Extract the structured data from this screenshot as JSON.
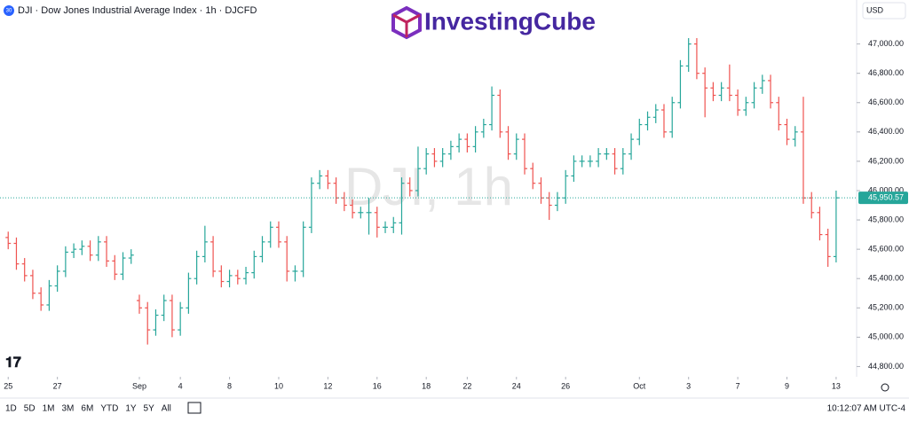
{
  "chart_data": {
    "type": "ohlc",
    "title": "DJI · Dow Jones Industrial Average Index · 1h · DJCFD",
    "symbol_badge": "30",
    "brand": "InvestingCube",
    "currency": "USD",
    "watermark": "DJI, 1h",
    "series": [
      {
        "name": "DJI",
        "up_color": "#26a69a",
        "down_color": "#ef5350",
        "open": [
          45680,
          45640,
          45500,
          45420,
          45300,
          45220,
          45350,
          45450,
          45580,
          45600,
          45620,
          45560,
          45650,
          45520,
          45430,
          45540,
          45250,
          45200,
          45050,
          45150,
          45250,
          45050,
          45200,
          45400,
          45550,
          45650,
          45450,
          45380,
          45420,
          45400,
          45440,
          45550,
          45650,
          45750,
          45650,
          45450,
          45450,
          45750,
          46050,
          46100,
          46050,
          45950,
          45900,
          45850,
          45850,
          45850,
          45750,
          45750,
          45780,
          46050,
          46000,
          46150,
          46250,
          46200,
          46250,
          46300,
          46350,
          46300,
          46400,
          46450,
          46650,
          46400,
          46250,
          46350,
          46150,
          46050,
          45950,
          45900,
          45950,
          46100,
          46200,
          46200,
          46200,
          46250,
          46250,
          46150,
          46250,
          46350,
          46450,
          46500,
          46550,
          46400,
          46600,
          46850,
          47000,
          46800,
          46700,
          46650,
          46700,
          46650,
          46550,
          46600,
          46700,
          46750,
          46600,
          46450,
          46350,
          46400,
          45950,
          45850,
          45700,
          45550
        ],
        "high": [
          45720,
          45680,
          45540,
          45460,
          45340,
          45390,
          45490,
          45620,
          45640,
          45660,
          45660,
          45690,
          45690,
          45560,
          45580,
          45600,
          45290,
          45240,
          45190,
          45290,
          45290,
          45240,
          45440,
          45590,
          45760,
          45690,
          45490,
          45460,
          45460,
          45480,
          45590,
          45690,
          45790,
          45790,
          45690,
          45490,
          45790,
          46090,
          46140,
          46140,
          46090,
          45990,
          45940,
          45890,
          45950,
          45890,
          45790,
          45820,
          46090,
          46090,
          46300,
          46290,
          46290,
          46290,
          46340,
          46390,
          46390,
          46440,
          46490,
          46710,
          46690,
          46440,
          46390,
          46390,
          46190,
          46090,
          45990,
          45990,
          46140,
          46240,
          46240,
          46240,
          46290,
          46290,
          46290,
          46290,
          46390,
          46490,
          46540,
          46590,
          46590,
          46640,
          46890,
          47040,
          47040,
          46840,
          46740,
          46740,
          46860,
          46690,
          46640,
          46740,
          46790,
          46790,
          46640,
          46490,
          46440,
          46640,
          45990,
          45890,
          45740,
          46000
        ],
        "low": [
          45600,
          45460,
          45380,
          45260,
          45180,
          45180,
          45310,
          45410,
          45540,
          45560,
          45520,
          45520,
          45480,
          45390,
          45390,
          45500,
          45160,
          44950,
          45010,
          45110,
          45000,
          45010,
          45160,
          45360,
          45510,
          45410,
          45340,
          45340,
          45360,
          45360,
          45400,
          45510,
          45610,
          45610,
          45380,
          45380,
          45410,
          45710,
          46010,
          46010,
          45910,
          45860,
          45810,
          45810,
          45700,
          45680,
          45710,
          45710,
          45700,
          45960,
          45960,
          46110,
          46160,
          46160,
          46210,
          46260,
          46260,
          46260,
          46360,
          46410,
          46360,
          46210,
          46210,
          46110,
          46010,
          45910,
          45800,
          45860,
          45910,
          46060,
          46160,
          46160,
          46160,
          46210,
          46110,
          46110,
          46210,
          46310,
          46410,
          46460,
          46360,
          46360,
          46560,
          46810,
          46760,
          46500,
          46610,
          46610,
          46610,
          46510,
          46510,
          46560,
          46660,
          46560,
          46410,
          46310,
          46300,
          45910,
          45810,
          45660,
          45480,
          45510
        ],
        "close": [
          45640,
          45500,
          45420,
          45300,
          45220,
          45350,
          45450,
          45580,
          45600,
          45620,
          45560,
          45650,
          45520,
          45430,
          45540,
          45560,
          45200,
          45050,
          45150,
          45250,
          45050,
          45200,
          45400,
          45550,
          45650,
          45450,
          45380,
          45420,
          45400,
          45440,
          45550,
          45650,
          45750,
          45650,
          45450,
          45450,
          45750,
          46050,
          46100,
          46050,
          45950,
          45900,
          45850,
          45850,
          45850,
          45750,
          45750,
          45780,
          46050,
          46000,
          46150,
          46250,
          46200,
          46250,
          46300,
          46350,
          46300,
          46400,
          46450,
          46650,
          46400,
          46250,
          46350,
          46150,
          46050,
          45950,
          45900,
          45950,
          46100,
          46200,
          46200,
          46200,
          46250,
          46250,
          46150,
          46250,
          46350,
          46450,
          46500,
          46550,
          46400,
          46600,
          46850,
          47000,
          46800,
          46700,
          46650,
          46700,
          46650,
          46550,
          46600,
          46700,
          46750,
          46600,
          46450,
          46350,
          46400,
          45950,
          45850,
          45700,
          45550,
          45950.57
        ]
      }
    ],
    "last_price": {
      "value": 45950.57,
      "label": "45,950.57"
    },
    "xlim": [
      -1,
      103.5
    ],
    "xticks": [
      {
        "value": 0,
        "label": "25"
      },
      {
        "value": 6,
        "label": "27"
      },
      {
        "value": 16,
        "label": "Sep"
      },
      {
        "value": 21,
        "label": "4"
      },
      {
        "value": 27,
        "label": "8"
      },
      {
        "value": 33,
        "label": "10"
      },
      {
        "value": 39,
        "label": "12"
      },
      {
        "value": 45,
        "label": "16"
      },
      {
        "value": 51,
        "label": "18"
      },
      {
        "value": 56,
        "label": "22"
      },
      {
        "value": 62,
        "label": "24"
      },
      {
        "value": 68,
        "label": "26"
      },
      {
        "value": 77,
        "label": "Oct"
      },
      {
        "value": 83,
        "label": "3"
      },
      {
        "value": 89,
        "label": "7"
      },
      {
        "value": 95,
        "label": "9"
      },
      {
        "value": 101,
        "label": "13"
      }
    ],
    "ylim": [
      44730,
      47300
    ],
    "yticks": [
      {
        "value": 44800,
        "label": "44,800.00"
      },
      {
        "value": 45000,
        "label": "45,000.00"
      },
      {
        "value": 45200,
        "label": "45,200.00"
      },
      {
        "value": 45400,
        "label": "45,400.00"
      },
      {
        "value": 45600,
        "label": "45,600.00"
      },
      {
        "value": 45800,
        "label": "45,800.00"
      },
      {
        "value": 46000,
        "label": "46,000.00"
      },
      {
        "value": 46200,
        "label": "46,200.00"
      },
      {
        "value": 46400,
        "label": "46,400.00"
      },
      {
        "value": 46600,
        "label": "46,600.00"
      },
      {
        "value": 46800,
        "label": "46,800.00"
      },
      {
        "value": 47000,
        "label": "47,000.00"
      }
    ],
    "ranges": [
      "1D",
      "5D",
      "1M",
      "3M",
      "6M",
      "YTD",
      "1Y",
      "5Y",
      "All"
    ],
    "clock": "10:12:07 AM UTC-4"
  }
}
